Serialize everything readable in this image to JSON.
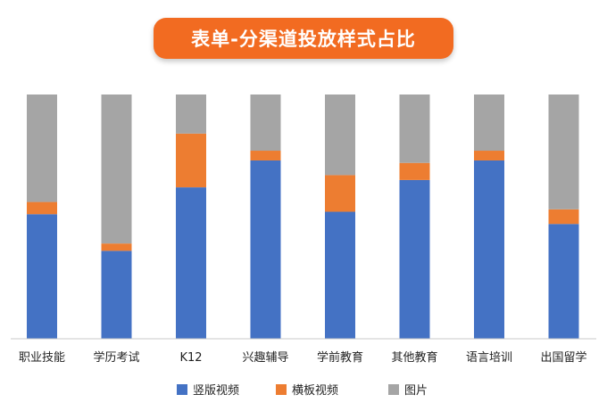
{
  "chart_data": {
    "type": "bar",
    "stacked": true,
    "title": "表单-分渠道投放样式占比",
    "categories": [
      "职业技能",
      "学历考试",
      "K12",
      "兴趣辅导",
      "学前教育",
      "其他教育",
      "语言培训",
      "出国留学"
    ],
    "series": [
      {
        "name": "竖版视频",
        "color": "#4472C4",
        "values": [
          51,
          36,
          62,
          73,
          52,
          65,
          73,
          47
        ]
      },
      {
        "name": "横板视频",
        "color": "#ED7D31",
        "values": [
          5,
          3,
          22,
          4,
          15,
          7,
          4,
          6
        ]
      },
      {
        "name": "图片",
        "color": "#A5A5A5",
        "values": [
          44,
          61,
          16,
          23,
          33,
          28,
          23,
          47
        ]
      }
    ],
    "ylim": [
      0,
      100
    ],
    "grid": false,
    "legend_position": "bottom"
  }
}
